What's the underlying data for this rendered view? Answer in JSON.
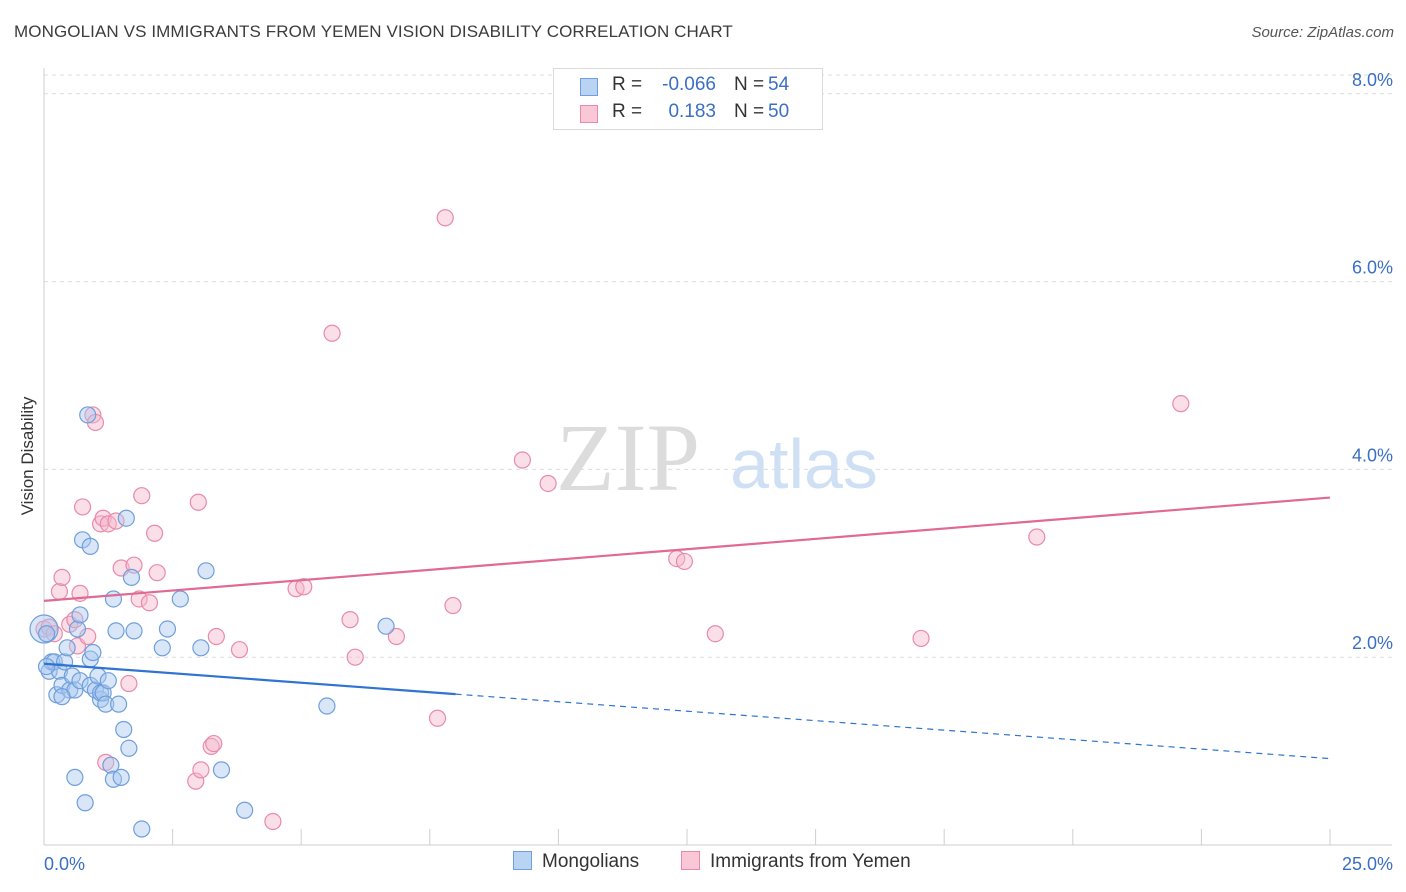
{
  "title": "MONGOLIAN VS IMMIGRANTS FROM YEMEN VISION DISABILITY CORRELATION CHART",
  "source": "Source: ZipAtlas.com",
  "watermark": {
    "zip": "ZIP",
    "atlas": "atlas"
  },
  "legend": {
    "r_label": "R =",
    "n_label": "N =",
    "series": [
      {
        "r": "-0.066",
        "n": "54"
      },
      {
        "r": "0.183",
        "n": "50"
      }
    ]
  },
  "bottom_legend": [
    "Mongolians",
    "Immigrants from Yemen"
  ],
  "colors": {
    "blue_fill": "#a8c8f0",
    "blue_stroke": "#6f9fdc",
    "blue_line": "#2f74d0",
    "pink_fill": "#f5b8cb",
    "pink_stroke": "#e98aaa",
    "pink_line": "#e06a94",
    "axis_text": "#3a6fc4",
    "grid": "#dcdcdc"
  },
  "chart_data": {
    "type": "scatter",
    "title": "MONGOLIAN VS IMMIGRANTS FROM YEMEN VISION DISABILITY CORRELATION CHART",
    "xlabel": "",
    "ylabel": "Vision Disability",
    "xlim": [
      0,
      25
    ],
    "ylim": [
      0,
      8.2
    ],
    "x_tick_labels": [
      "0.0%",
      "25.0%"
    ],
    "y_ticks": [
      2,
      4,
      6,
      8
    ],
    "y_tick_labels": [
      "2.0%",
      "4.0%",
      "6.0%",
      "8.0%"
    ],
    "grid": true,
    "series": [
      {
        "name": "Mongolians",
        "r": -0.066,
        "n": 54,
        "trend": {
          "x0": 0,
          "y0": 1.93,
          "x1": 25,
          "y1": 0.92,
          "solid_until_x": 8.0
        },
        "points": [
          [
            0.0,
            2.3
          ],
          [
            0.05,
            2.25
          ],
          [
            0.1,
            1.85
          ],
          [
            0.15,
            1.95
          ],
          [
            0.2,
            1.95
          ],
          [
            0.25,
            1.6
          ],
          [
            0.3,
            1.85
          ],
          [
            0.35,
            1.7
          ],
          [
            0.4,
            1.95
          ],
          [
            0.45,
            2.1
          ],
          [
            0.5,
            1.65
          ],
          [
            0.55,
            1.8
          ],
          [
            0.6,
            1.65
          ],
          [
            0.65,
            2.3
          ],
          [
            0.6,
            0.72
          ],
          [
            0.7,
            1.75
          ],
          [
            0.7,
            2.45
          ],
          [
            0.75,
            3.25
          ],
          [
            0.8,
            0.45
          ],
          [
            0.85,
            4.58
          ],
          [
            0.9,
            1.98
          ],
          [
            0.9,
            1.7
          ],
          [
            0.9,
            3.18
          ],
          [
            0.95,
            2.05
          ],
          [
            1.0,
            1.65
          ],
          [
            1.05,
            1.8
          ],
          [
            1.1,
            1.55
          ],
          [
            1.1,
            1.62
          ],
          [
            1.15,
            1.62
          ],
          [
            1.2,
            1.5
          ],
          [
            1.25,
            1.75
          ],
          [
            1.3,
            0.85
          ],
          [
            1.35,
            2.62
          ],
          [
            1.35,
            0.7
          ],
          [
            1.4,
            2.28
          ],
          [
            1.45,
            1.5
          ],
          [
            1.5,
            0.72
          ],
          [
            1.55,
            1.23
          ],
          [
            1.6,
            3.48
          ],
          [
            1.65,
            1.03
          ],
          [
            1.7,
            2.85
          ],
          [
            1.75,
            2.28
          ],
          [
            1.9,
            0.17
          ],
          [
            2.3,
            2.1
          ],
          [
            2.4,
            2.3
          ],
          [
            2.65,
            2.62
          ],
          [
            3.05,
            2.1
          ],
          [
            3.15,
            2.92
          ],
          [
            3.45,
            0.8
          ],
          [
            3.9,
            0.37
          ],
          [
            5.5,
            1.48
          ],
          [
            6.65,
            2.33
          ],
          [
            0.05,
            1.9
          ],
          [
            0.35,
            1.58
          ]
        ]
      },
      {
        "name": "Immigrants from Yemen",
        "r": 0.183,
        "n": 50,
        "trend": {
          "x0": 0,
          "y0": 2.6,
          "x1": 25,
          "y1": 3.7
        },
        "points": [
          [
            0.0,
            2.3
          ],
          [
            0.1,
            2.32
          ],
          [
            0.2,
            2.25
          ],
          [
            0.3,
            2.7
          ],
          [
            0.35,
            2.85
          ],
          [
            0.5,
            2.35
          ],
          [
            0.6,
            2.4
          ],
          [
            0.65,
            2.12
          ],
          [
            0.7,
            2.68
          ],
          [
            0.75,
            3.6
          ],
          [
            0.85,
            2.22
          ],
          [
            0.95,
            4.58
          ],
          [
            1.0,
            4.5
          ],
          [
            1.1,
            3.42
          ],
          [
            1.15,
            3.48
          ],
          [
            1.2,
            0.88
          ],
          [
            1.25,
            3.42
          ],
          [
            1.4,
            3.45
          ],
          [
            1.5,
            2.95
          ],
          [
            1.65,
            1.72
          ],
          [
            1.75,
            2.98
          ],
          [
            1.85,
            2.62
          ],
          [
            1.9,
            3.72
          ],
          [
            2.05,
            2.58
          ],
          [
            2.15,
            3.32
          ],
          [
            2.2,
            2.9
          ],
          [
            3.0,
            3.65
          ],
          [
            2.95,
            0.68
          ],
          [
            3.05,
            0.8
          ],
          [
            3.25,
            1.05
          ],
          [
            3.3,
            1.08
          ],
          [
            3.35,
            2.22
          ],
          [
            3.8,
            2.08
          ],
          [
            4.45,
            0.25
          ],
          [
            4.9,
            2.73
          ],
          [
            5.05,
            2.75
          ],
          [
            5.6,
            5.45
          ],
          [
            5.95,
            2.4
          ],
          [
            6.05,
            2.0
          ],
          [
            6.85,
            2.22
          ],
          [
            7.65,
            1.35
          ],
          [
            7.8,
            6.68
          ],
          [
            7.95,
            2.55
          ],
          [
            9.3,
            4.1
          ],
          [
            9.8,
            3.85
          ],
          [
            12.3,
            3.05
          ],
          [
            12.45,
            3.02
          ],
          [
            13.05,
            2.25
          ],
          [
            17.05,
            2.2
          ],
          [
            19.3,
            3.28
          ]
        ]
      }
    ],
    "extra_points_note": "",
    "outlier": [
      22.1,
      4.7
    ]
  }
}
